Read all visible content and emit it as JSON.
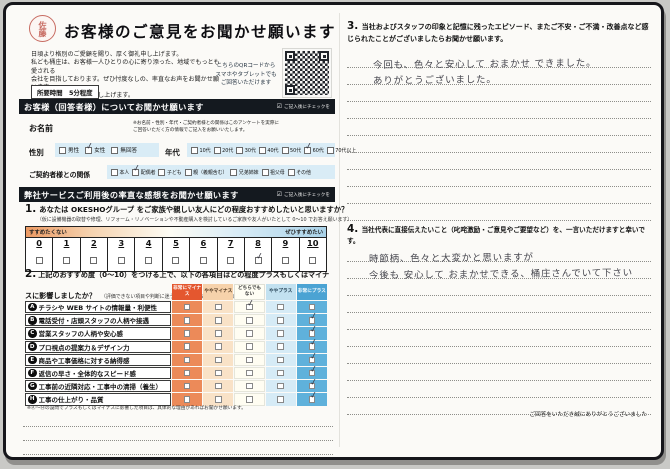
{
  "page": {
    "stamp": "佐藤",
    "title": "お客様のご意見をお聞かせ願います",
    "intro_lines": [
      "日頃より格別のご愛顧を賜り、厚く御礼申し上げます。",
      "私ども桶庄は、お客様一人ひとりの心に寄り添った、地域でもっとも愛される",
      "会社を目指しております。ぜひ忖度なしの、率直なお声をお聞かせ願います。",
      "何卒、よろしくお願い申し上げます。"
    ],
    "duration_label": "所要時間　5分程度",
    "qr_note_lines": [
      "こちらのQRコードから",
      "スマホやタブレットでも",
      "ご回答いただけます"
    ],
    "thanks": "ご回答をいただき誠にありがとうございました"
  },
  "profile": {
    "header": "お客様（回答者様）についてお聞かせ願います",
    "header_note": "ご記入後にチェックを",
    "name_label": "お名前",
    "name_note_lines": [
      "※お名前・性別・年代・ご契約者様との関係はこのアンケートを実際に",
      "ご回答いただく方の情報でご記入をお願いいたします。"
    ],
    "gender": {
      "label": "性別",
      "options": [
        {
          "label": "男性",
          "checked": false
        },
        {
          "label": "女性",
          "checked": true
        },
        {
          "label": "無回答",
          "checked": false
        }
      ]
    },
    "age": {
      "label": "年代",
      "options": [
        {
          "label": "10代",
          "checked": false
        },
        {
          "label": "20代",
          "checked": false
        },
        {
          "label": "30代",
          "checked": false
        },
        {
          "label": "40代",
          "checked": false
        },
        {
          "label": "50代",
          "checked": false
        },
        {
          "label": "60代",
          "checked": true
        },
        {
          "label": "70代以上",
          "checked": false
        }
      ]
    },
    "relation": {
      "label": "ご契約者様との関係",
      "options": [
        {
          "label": "本人",
          "checked": false
        },
        {
          "label": "配偶者",
          "checked": true
        },
        {
          "label": "子ども",
          "checked": false
        },
        {
          "label": "親（義親含む）",
          "checked": false
        },
        {
          "label": "兄弟姉妹",
          "checked": false
        },
        {
          "label": "祖父母",
          "checked": false
        },
        {
          "label": "その他",
          "checked": false
        }
      ]
    }
  },
  "survey": {
    "header": "弊社サービスご利用後の率直な感想をお聞かせ願います",
    "header_note": "ご記入後にチェックを",
    "q1": {
      "number": "1.",
      "text": "あなたは OKESHOグループ をご家族や親しい友人にどの程度おすすめしたいと思いますか？",
      "note": "（仮に設備機器の取替や修理、リフォーム・リノベーションや不動産購入を検討しているご家族や友人がいたとして 0～10 でお答え願います）",
      "left_label": "すすめたくない",
      "right_label": "ぜひすすめたい",
      "min": 0,
      "max": 10,
      "selected": 8
    },
    "q2": {
      "number": "2.",
      "text": "上記のおすすめ度（0～10）をつける上で、以下の各項目はどの程度プラスもしくはマイナスに影響しましたか？",
      "note": "（評価できない項目や判断に迷う項目は「どちらでもない」にチェックを）",
      "columns": [
        "非常にマイナス",
        "ややマイナス",
        "どちらでもない",
        "ややプラス",
        "非常にプラス"
      ],
      "rows": [
        {
          "id": "A",
          "label": "チラシや WEB サイトの情報量・利便性",
          "checked": 2
        },
        {
          "id": "B",
          "label": "電話受付・店頭スタッフの人柄や接遇",
          "checked": 4
        },
        {
          "id": "C",
          "label": "営業スタッフの人柄や安心感",
          "checked": 4
        },
        {
          "id": "D",
          "label": "プロ視点の提案力＆デザイン力",
          "checked": 4
        },
        {
          "id": "E",
          "label": "商品や工事価格に対する納得感",
          "checked": 4
        },
        {
          "id": "F",
          "label": "返信の早さ・全体的なスピード感",
          "checked": 4
        },
        {
          "id": "G",
          "label": "工事前の近隣対応・工事中の清掃（養生）",
          "checked": 4
        },
        {
          "id": "H",
          "label": "工事の仕上がり・品質",
          "checked": 4
        }
      ],
      "footnote": "※Ⓐ～Ⓗの設問でプラスもしくはマイナスに影響した項目は、具体的な理由があればお聞かせ願います。"
    }
  },
  "q3": {
    "number": "3.",
    "text": "当社およびスタッフの印象と記憶に残ったエピソード、またご不安・ご不満・改善点など感じられたことがございましたらお聞かせ願います。",
    "handwriting": [
      "今回も、色々と安心して おまかせ できました。",
      "ありがとうございました。"
    ]
  },
  "q4": {
    "number": "4.",
    "text": "当社代表に直接伝えたいこと（叱咤激励・ご意見やご要望など）を、一言いただけますと幸いです。",
    "handwriting": [
      "時節柄、色々と大変かと思いますが",
      "今後も 安心して おまかせできる、桶庄さんでいて下さい"
    ]
  }
}
